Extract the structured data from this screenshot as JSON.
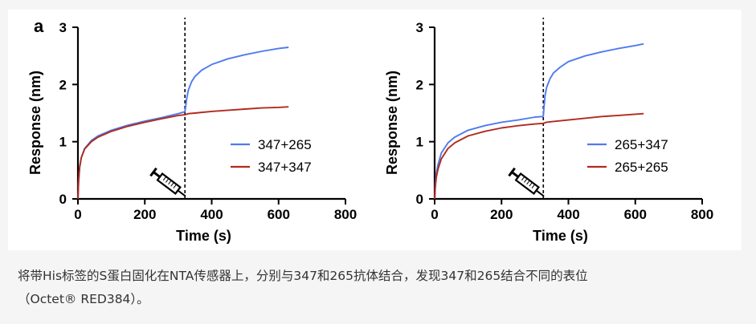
{
  "panel_letter": "a",
  "caption_line1": "将带His标签的S蛋白固化在NTA传感器上，分别与347和265抗体结合，发现347和265结合不同的表位",
  "caption_line2": "（Octet® RED384）。",
  "colors": {
    "blue": "#4f7bef",
    "red": "#b22a1e",
    "axis": "#000000"
  },
  "icons": {
    "injection_marker": "syringe-icon"
  },
  "chart_data": [
    {
      "type": "line",
      "xlabel": "Time (s)",
      "ylabel": "Response (nm)",
      "xlim": [
        0,
        800
      ],
      "ylim": [
        0,
        3
      ],
      "x_ticks": [
        "0",
        "200",
        "400",
        "600",
        "800"
      ],
      "y_ticks": [
        "0",
        "1",
        "2",
        "3"
      ],
      "injection_time": 320,
      "legend_position": "right",
      "series": [
        {
          "name": "347+265",
          "color": "#4f7bef",
          "x": [
            0,
            2,
            5,
            10,
            20,
            40,
            60,
            100,
            150,
            200,
            250,
            300,
            318,
            320,
            322,
            325,
            330,
            340,
            350,
            370,
            400,
            450,
            500,
            550,
            600,
            630
          ],
          "y": [
            0,
            0.3,
            0.55,
            0.72,
            0.88,
            1.02,
            1.1,
            1.2,
            1.29,
            1.36,
            1.42,
            1.49,
            1.52,
            1.53,
            1.6,
            1.75,
            1.9,
            2.05,
            2.14,
            2.25,
            2.35,
            2.45,
            2.52,
            2.58,
            2.63,
            2.65
          ]
        },
        {
          "name": "347+347",
          "color": "#b22a1e",
          "x": [
            0,
            2,
            5,
            10,
            20,
            40,
            60,
            100,
            150,
            200,
            250,
            300,
            320,
            330,
            350,
            400,
            450,
            500,
            550,
            600,
            630
          ],
          "y": [
            0,
            0.3,
            0.55,
            0.72,
            0.87,
            1.0,
            1.08,
            1.18,
            1.27,
            1.34,
            1.4,
            1.46,
            1.47,
            1.49,
            1.5,
            1.53,
            1.55,
            1.57,
            1.59,
            1.6,
            1.61
          ]
        }
      ]
    },
    {
      "type": "line",
      "xlabel": "Time (s)",
      "ylabel": "Response (nm)",
      "xlim": [
        0,
        800
      ],
      "ylim": [
        0,
        3
      ],
      "x_ticks": [
        "0",
        "200",
        "400",
        "600",
        "800"
      ],
      "y_ticks": [
        "0",
        "1",
        "2",
        "3"
      ],
      "injection_time": 325,
      "legend_position": "right",
      "series": [
        {
          "name": "265+347",
          "color": "#4f7bef",
          "x": [
            0,
            2,
            5,
            10,
            20,
            40,
            60,
            100,
            150,
            200,
            250,
            300,
            323,
            325,
            327,
            330,
            335,
            345,
            355,
            375,
            400,
            450,
            500,
            550,
            600,
            625
          ],
          "y": [
            0,
            0.25,
            0.45,
            0.6,
            0.8,
            0.98,
            1.08,
            1.2,
            1.28,
            1.34,
            1.38,
            1.43,
            1.44,
            1.45,
            1.6,
            1.8,
            1.95,
            2.1,
            2.2,
            2.3,
            2.4,
            2.5,
            2.57,
            2.63,
            2.68,
            2.71
          ]
        },
        {
          "name": "265+265",
          "color": "#b22a1e",
          "x": [
            0,
            2,
            5,
            10,
            20,
            40,
            60,
            100,
            150,
            200,
            250,
            300,
            325,
            335,
            350,
            400,
            450,
            500,
            550,
            600,
            625
          ],
          "y": [
            0,
            0.2,
            0.38,
            0.52,
            0.7,
            0.88,
            0.98,
            1.1,
            1.18,
            1.24,
            1.28,
            1.31,
            1.32,
            1.34,
            1.35,
            1.38,
            1.41,
            1.44,
            1.46,
            1.48,
            1.49
          ]
        }
      ]
    }
  ]
}
